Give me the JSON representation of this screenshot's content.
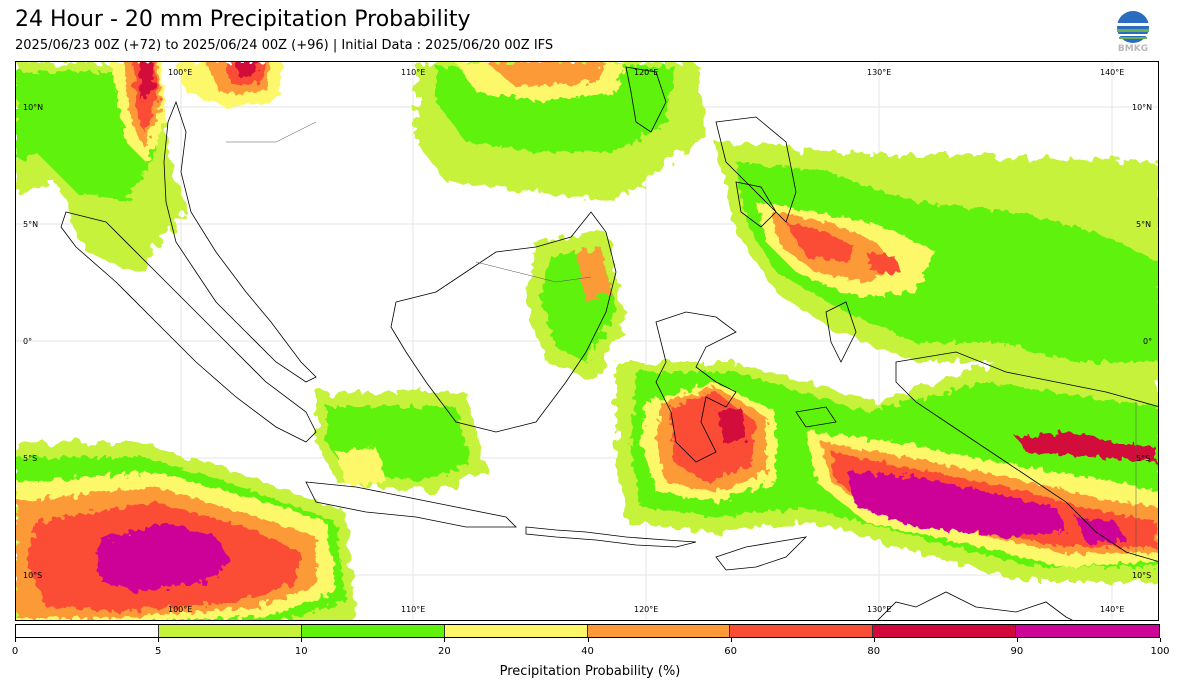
{
  "header": {
    "title": "24 Hour - 20 mm Precipitation Probability",
    "subtitle": "2025/06/23 00Z (+72) to 2025/06/24 00Z (+96) | Initial Data : 2025/06/20 00Z IFS",
    "logo_text": "BMKG"
  },
  "map": {
    "lon_labels": [
      "100°E",
      "110°E",
      "120°E",
      "130°E",
      "140°E"
    ],
    "lat_labels": [
      "10°N",
      "5°N",
      "0°",
      "5°S",
      "10°S"
    ],
    "extent": {
      "lon": [
        94,
        143
      ],
      "lat": [
        -11.5,
        12.5
      ]
    },
    "land_color": "#ffffff",
    "coast_color": "#000000"
  },
  "colorbar": {
    "label": "Precipitation Probability (%)",
    "ticks": [
      "0",
      "5",
      "10",
      "20",
      "40",
      "60",
      "80",
      "90",
      "100"
    ],
    "colors": [
      "#ffffff",
      "#c6f23a",
      "#5ef20c",
      "#fdf86a",
      "#fd9a37",
      "#fb4d35",
      "#d2083b",
      "#cd0498"
    ]
  }
}
